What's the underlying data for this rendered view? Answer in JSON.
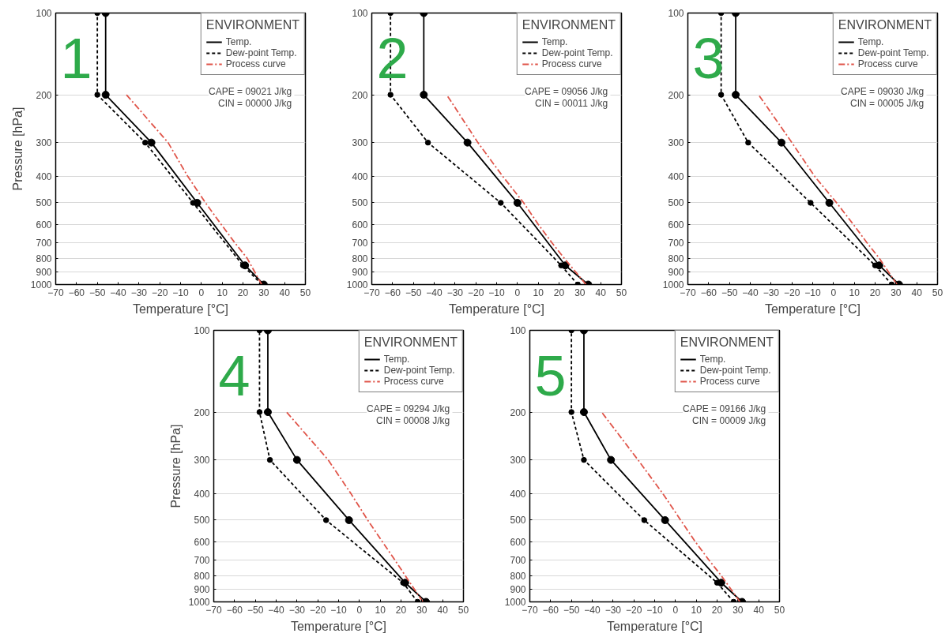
{
  "chart_data": [
    {
      "type": "line",
      "title": null,
      "annotations": [
        "1",
        "CAPE =  09021 J/kg",
        "CIN =  00000 J/kg"
      ],
      "xlabel": "Temperature [°C]",
      "ylabel": "Pressure [hPa]",
      "legend_title": "ENVIRONMENT",
      "legend": "top right",
      "grid": "y",
      "log": "y",
      "xlim": [
        -70,
        50
      ],
      "xticks": [
        -70,
        -60,
        -50,
        -40,
        -30,
        -20,
        -10,
        0,
        10,
        20,
        30,
        40,
        50
      ],
      "ylim": [
        1000,
        100
      ],
      "yticks": [
        100,
        200,
        300,
        400,
        500,
        600,
        700,
        800,
        900,
        1000
      ],
      "series": [
        {
          "name": "Temp.",
          "color": "#000000",
          "line_style": "solid",
          "marker": "circle",
          "x": [
            30,
            21,
            -2,
            -24,
            -46,
            -46
          ],
          "values": [
            1000,
            850,
            500,
            300,
            200,
            100
          ]
        },
        {
          "name": "Dew-point Temp.",
          "color": "#000000",
          "line_style": "dashed",
          "marker": "circle",
          "x": [
            29,
            20,
            -4,
            -27,
            -50,
            -50
          ],
          "values": [
            1000,
            850,
            500,
            300,
            200,
            100
          ]
        },
        {
          "name": "Process curve",
          "color": "#e0554a",
          "line_style": "dashdot",
          "marker": "none",
          "x": [
            29,
            22,
            16,
            9.5,
            2,
            -6.5,
            -16,
            -36
          ],
          "values": [
            1000,
            800,
            700,
            600,
            500,
            400,
            300,
            200
          ]
        }
      ]
    },
    {
      "type": "line",
      "title": null,
      "annotations": [
        "2",
        "CAPE =  09056 J/kg",
        "CIN =  00011 J/kg"
      ],
      "xlabel": "Temperature [°C]",
      "legend_title": "ENVIRONMENT",
      "legend": "top right",
      "grid": "y",
      "log": "y",
      "xlim": [
        -70,
        50
      ],
      "xticks": [
        -70,
        -60,
        -50,
        -40,
        -30,
        -20,
        -10,
        0,
        10,
        20,
        30,
        40,
        50
      ],
      "ylim": [
        1000,
        100
      ],
      "yticks": [
        100,
        200,
        300,
        400,
        500,
        600,
        700,
        800,
        900,
        1000
      ],
      "series": [
        {
          "name": "Temp.",
          "color": "#000000",
          "line_style": "solid",
          "marker": "circle",
          "x": [
            34,
            23,
            0,
            -24,
            -45,
            -45
          ],
          "values": [
            1000,
            850,
            500,
            300,
            200,
            100
          ]
        },
        {
          "name": "Dew-point Temp.",
          "color": "#000000",
          "line_style": "dashed",
          "marker": "circle",
          "x": [
            29,
            21,
            -8,
            -43,
            -61,
            -61
          ],
          "values": [
            1000,
            850,
            500,
            300,
            200,
            100
          ]
        },
        {
          "name": "Process curve",
          "color": "#e0554a",
          "line_style": "dashdot",
          "marker": "none",
          "x": [
            33,
            22.5,
            16.5,
            10,
            3,
            -7,
            -19,
            -34
          ],
          "values": [
            1000,
            800,
            700,
            600,
            500,
            400,
            300,
            200
          ]
        }
      ]
    },
    {
      "type": "line",
      "title": null,
      "annotations": [
        "3",
        "CAPE =  09030 J/kg",
        "CIN =  00005 J/kg"
      ],
      "xlabel": "Temperature [°C]",
      "legend_title": "ENVIRONMENT",
      "legend": "top right",
      "grid": "y",
      "log": "y",
      "xlim": [
        -70,
        50
      ],
      "xticks": [
        -70,
        -60,
        -50,
        -40,
        -30,
        -20,
        -10,
        0,
        10,
        20,
        30,
        40,
        50
      ],
      "ylim": [
        1000,
        100
      ],
      "yticks": [
        100,
        200,
        300,
        400,
        500,
        600,
        700,
        800,
        900,
        1000
      ],
      "series": [
        {
          "name": "Temp.",
          "color": "#000000",
          "line_style": "solid",
          "marker": "circle",
          "x": [
            31.5,
            22,
            -2,
            -25,
            -47,
            -47
          ],
          "values": [
            1000,
            850,
            500,
            300,
            200,
            100
          ]
        },
        {
          "name": "Dew-point Temp.",
          "color": "#000000",
          "line_style": "dashed",
          "marker": "circle",
          "x": [
            28,
            20,
            -11,
            -41,
            -54,
            -54
          ],
          "values": [
            1000,
            850,
            500,
            300,
            200,
            100
          ]
        },
        {
          "name": "Process curve",
          "color": "#e0554a",
          "line_style": "dashdot",
          "marker": "none",
          "x": [
            30.5,
            22,
            16,
            9.5,
            1.5,
            -9,
            -20,
            -36
          ],
          "values": [
            1000,
            800,
            700,
            600,
            500,
            400,
            300,
            200
          ]
        }
      ]
    },
    {
      "type": "line",
      "title": null,
      "annotations": [
        "4",
        "CAPE =  09294 J/kg",
        "CIN =  00008 J/kg"
      ],
      "xlabel": "Temperature [°C]",
      "ylabel": "Pressure [hPa]",
      "legend_title": "ENVIRONMENT",
      "legend": "top right",
      "grid": "y",
      "log": "y",
      "xlim": [
        -70,
        50
      ],
      "xticks": [
        -70,
        -60,
        -50,
        -40,
        -30,
        -20,
        -10,
        0,
        10,
        20,
        30,
        40,
        50
      ],
      "ylim": [
        1000,
        100
      ],
      "yticks": [
        100,
        200,
        300,
        400,
        500,
        600,
        700,
        800,
        900,
        1000
      ],
      "series": [
        {
          "name": "Temp.",
          "color": "#000000",
          "line_style": "solid",
          "marker": "circle",
          "x": [
            32,
            22,
            -5,
            -30,
            -44,
            -44
          ],
          "values": [
            1000,
            850,
            500,
            300,
            200,
            100
          ]
        },
        {
          "name": "Dew-point Temp.",
          "color": "#000000",
          "line_style": "dashed",
          "marker": "circle",
          "x": [
            28,
            21,
            -16,
            -43,
            -48,
            -48
          ],
          "values": [
            1000,
            850,
            500,
            300,
            200,
            100
          ]
        },
        {
          "name": "Process curve",
          "color": "#e0554a",
          "line_style": "dashdot",
          "marker": "none",
          "x": [
            30.5,
            22,
            17,
            11,
            4,
            -4,
            -15,
            -35
          ],
          "values": [
            1000,
            800,
            700,
            600,
            500,
            400,
            300,
            200
          ]
        }
      ]
    },
    {
      "type": "line",
      "title": null,
      "annotations": [
        "5",
        "CAPE =  09166 J/kg",
        "CIN =  00009 J/kg"
      ],
      "xlabel": "Temperature [°C]",
      "legend_title": "ENVIRONMENT",
      "legend": "top right",
      "grid": "y",
      "log": "y",
      "xlim": [
        -70,
        50
      ],
      "xticks": [
        -70,
        -60,
        -50,
        -40,
        -30,
        -20,
        -10,
        0,
        10,
        20,
        30,
        40,
        50
      ],
      "ylim": [
        1000,
        100
      ],
      "yticks": [
        100,
        200,
        300,
        400,
        500,
        600,
        700,
        800,
        900,
        1000
      ],
      "series": [
        {
          "name": "Temp.",
          "color": "#000000",
          "line_style": "solid",
          "marker": "circle",
          "x": [
            32,
            22,
            -5,
            -31,
            -44,
            -44
          ],
          "values": [
            1000,
            850,
            500,
            300,
            200,
            100
          ]
        },
        {
          "name": "Dew-point Temp.",
          "color": "#000000",
          "line_style": "dashed",
          "marker": "circle",
          "x": [
            28,
            20,
            -15,
            -44,
            -50,
            -50
          ],
          "values": [
            1000,
            850,
            500,
            300,
            200,
            100
          ]
        },
        {
          "name": "Process curve",
          "color": "#e0554a",
          "line_style": "dashdot",
          "marker": "none",
          "x": [
            31,
            22,
            16,
            9.5,
            2.5,
            -6,
            -18,
            -35.5
          ],
          "values": [
            1000,
            800,
            700,
            600,
            500,
            400,
            300,
            200
          ]
        }
      ]
    }
  ]
}
